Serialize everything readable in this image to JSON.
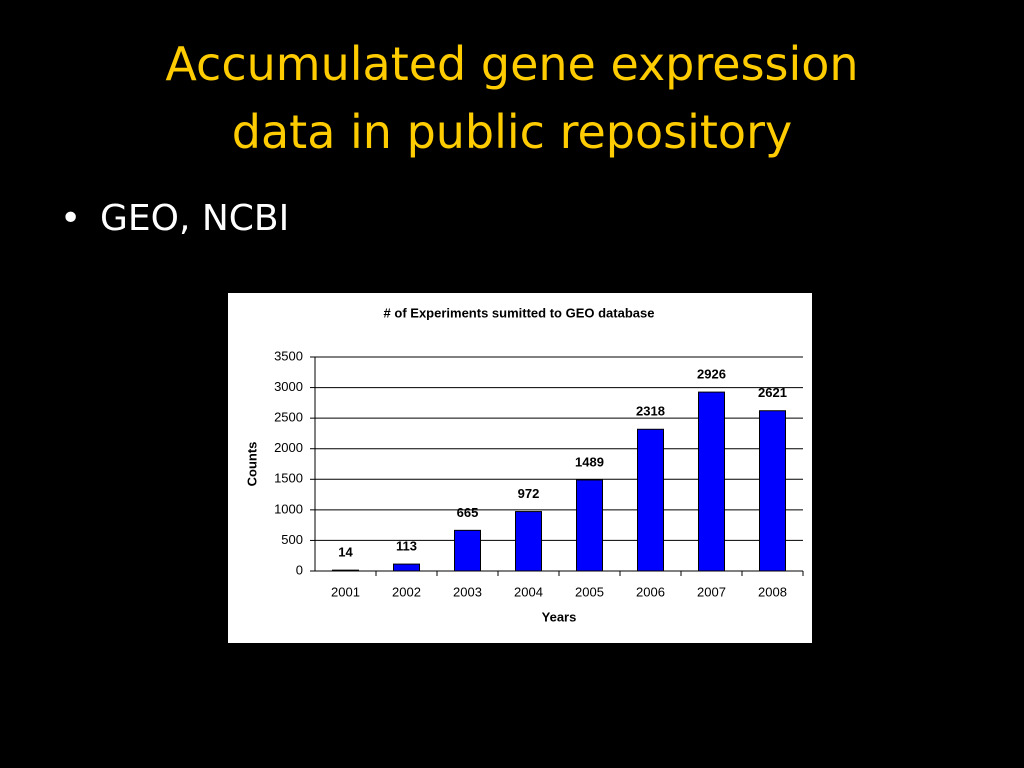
{
  "slide": {
    "title": [
      "Accumulated gene expression",
      "data in public repository"
    ],
    "bullets": [
      "GEO, NCBI"
    ]
  },
  "chart_data": {
    "type": "bar",
    "title": "# of Experiments sumitted to GEO database",
    "x_label": "Years",
    "y_label": "Counts",
    "categories": [
      "2001",
      "2002",
      "2003",
      "2004",
      "2005",
      "2006",
      "2007",
      "2008"
    ],
    "values": [
      14,
      113,
      665,
      972,
      1489,
      2318,
      2926,
      2621
    ],
    "color": "#0000ff",
    "ylim": [
      0,
      3500
    ],
    "yticks": [
      0,
      500,
      1000,
      1500,
      2000,
      2500,
      3000,
      3500
    ],
    "grid": true
  }
}
